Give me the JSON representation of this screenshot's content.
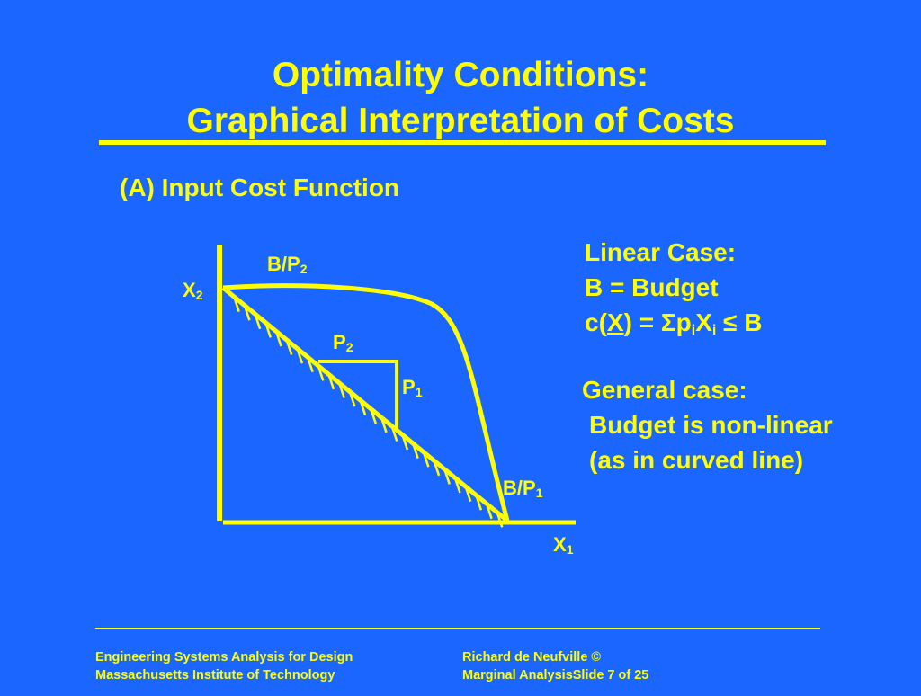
{
  "title": {
    "line1": "Optimality Conditions:",
    "line2": "Graphical Interpretation of Costs"
  },
  "subtitle": "(A) Input Cost Function",
  "diagram": {
    "x2_label": "X",
    "x2_sub": "2",
    "x1_label": "X",
    "x1_sub": "1",
    "b_over_p2": "B/P",
    "b_over_p2_sub": "2",
    "b_over_p1": "B/P",
    "b_over_p1_sub": "1",
    "p2_label": "P",
    "p2_sub": "2",
    "p1_label": "P",
    "p1_sub": "1"
  },
  "linear_case": {
    "heading": "Linear Case:",
    "budget_line": "B = Budget",
    "formula": {
      "c": "c(",
      "x": "X",
      "mid": ") = ",
      "sigma": "Σ",
      "p": "p",
      "p_sub": "i",
      "xi": "X",
      "xi_sub": "i",
      "le": " ≤ B"
    }
  },
  "general_case": {
    "heading": "General case:",
    "line1": "Budget is non-linear",
    "line2": "(as in curved line)"
  },
  "footer": {
    "left1": "Engineering Systems Analysis for Design",
    "left2": "Massachusetts Institute of Technology",
    "right1": "Richard de Neufville ©",
    "right2": "Marginal AnalysisSlide 7 of 25"
  },
  "colors": {
    "background": "#1a66ff",
    "foreground": "#ffff00"
  }
}
